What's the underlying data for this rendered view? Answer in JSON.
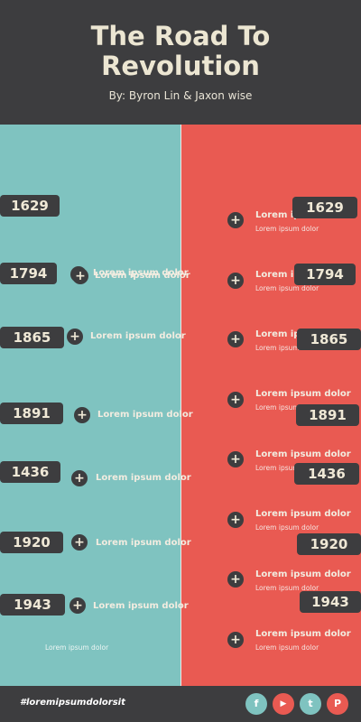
{
  "header": {
    "title_line1": "The Road To",
    "title_line2": "Revolution",
    "byline": "By: Byron Lin & Jaxon wise"
  },
  "left": {
    "years": [
      "1629",
      "1794",
      "1865",
      "1891",
      "1436",
      "1920",
      "1943"
    ],
    "label": "Lorem ipsum dolor",
    "bottom_sub": "Lorem ipsum dolor"
  },
  "right": {
    "years": [
      "1629",
      "1794",
      "1865",
      "1891",
      "1436",
      "1920",
      "1943"
    ],
    "label": "Lorem ipsum dolor",
    "sub": "Lorem ipsum dolor"
  },
  "footer": {
    "hashtag": "#loremipsumdolorsit",
    "social": [
      {
        "name": "facebook",
        "glyph": "f",
        "color": "#7fc3c0"
      },
      {
        "name": "youtube",
        "glyph": "▶",
        "color": "#e95a52"
      },
      {
        "name": "twitter",
        "glyph": "t",
        "color": "#7fc3c0"
      },
      {
        "name": "pinterest",
        "glyph": "P",
        "color": "#e95a52"
      }
    ]
  },
  "colors": {
    "teal": "#7fc3c0",
    "coral": "#e95a52",
    "dark": "#3d3d3f",
    "cream": "#ece6d2"
  }
}
